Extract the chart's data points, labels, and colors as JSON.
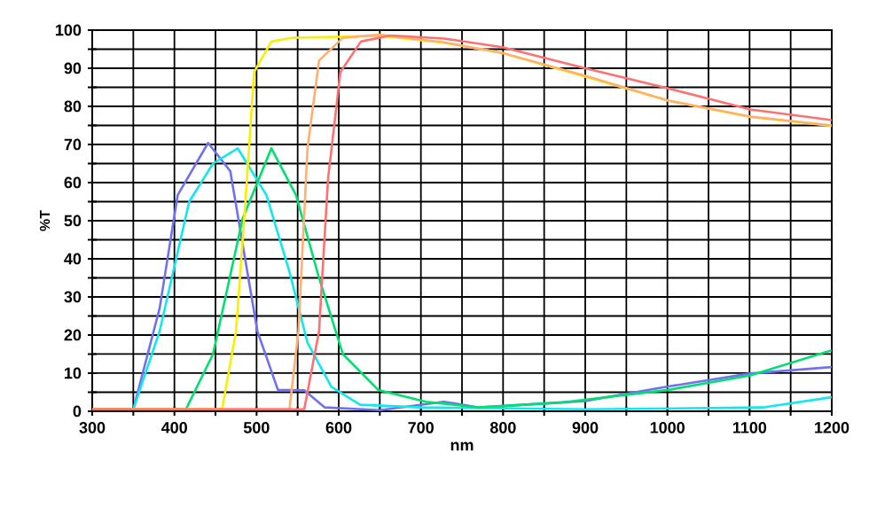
{
  "chart_data": {
    "type": "line",
    "xlabel": "nm",
    "ylabel": "%T",
    "xlim": [
      300,
      1200
    ],
    "ylim": [
      0,
      100
    ],
    "xticks": [
      300,
      {
        "value": 350,
        "label": null
      },
      400,
      {
        "value": 450,
        "label": null
      },
      500,
      {
        "value": 550,
        "label": null
      },
      600,
      {
        "value": 650,
        "label": null
      },
      700,
      {
        "value": 750,
        "label": null
      },
      800,
      {
        "value": 850,
        "label": null
      },
      900,
      {
        "value": 950,
        "label": null
      },
      1000,
      {
        "value": 1050,
        "label": null
      },
      1100,
      {
        "value": 1150,
        "label": null
      },
      1200
    ],
    "yticks": [
      0,
      {
        "value": 5,
        "label": null
      },
      10,
      {
        "value": 15,
        "label": null
      },
      20,
      {
        "value": 25,
        "label": null
      },
      30,
      {
        "value": 35,
        "label": null
      },
      40,
      {
        "value": 45,
        "label": null
      },
      50,
      {
        "value": 55,
        "label": null
      },
      60,
      {
        "value": 65,
        "label": null
      },
      70,
      {
        "value": 75,
        "label": null
      },
      80,
      {
        "value": 85,
        "label": null
      },
      90,
      {
        "value": 95,
        "label": null
      },
      100
    ],
    "grid": true,
    "marker": "none",
    "line_style": "solid",
    "series": [
      {
        "color": "#7070f0",
        "x": [
          300,
          350,
          382,
          404,
          441,
          468,
          501,
          526,
          558,
          583,
          650,
          728,
          771,
          900,
          1001,
          1101,
          1200
        ],
        "values": [
          0.5,
          0.5,
          27,
          56.7,
          70.4,
          63,
          21,
          5.6,
          5.5,
          1,
          0.3,
          2.5,
          1,
          2.7,
          6.5,
          9.9,
          11.6
        ]
      },
      {
        "color": "#10e8f0",
        "x": [
          300,
          350,
          382,
          418,
          447,
          477,
          512,
          540,
          562,
          591,
          626,
          700,
          900,
          1116,
          1200
        ],
        "values": [
          0.5,
          0.5,
          21,
          55,
          65,
          69,
          56.7,
          36.6,
          18,
          6.4,
          1.7,
          1,
          0.5,
          1,
          3.7
        ]
      },
      {
        "color": "#00e070",
        "x": [
          300,
          414,
          447,
          483,
          518,
          548,
          576,
          605,
          648,
          706,
          771,
          872,
          1001,
          1101,
          1200
        ],
        "values": [
          0.5,
          0.5,
          15,
          50.5,
          69,
          56.7,
          35,
          15,
          5.6,
          2.5,
          1,
          2.3,
          5.6,
          9.4,
          16
        ]
      },
      {
        "color": "#f8f000",
        "x": [
          300,
          458,
          475,
          486,
          497,
          518,
          544,
          650,
          728,
          799,
          900,
          1001,
          1101,
          1200
        ],
        "values": [
          0.5,
          0.5,
          21,
          53.6,
          89,
          97,
          98,
          98.5,
          96.7,
          94,
          87.8,
          81.5,
          77.2,
          74.9
        ]
      },
      {
        "color": "#ffb070",
        "x": [
          300,
          540,
          551,
          562,
          576,
          605,
          650,
          728,
          799,
          900,
          1001,
          1101,
          1200
        ],
        "values": [
          0.5,
          0.5,
          21,
          69,
          92,
          98,
          98.8,
          96.8,
          94,
          88,
          81.5,
          77.3,
          75
        ]
      },
      {
        "color": "#ff7070",
        "x": [
          300,
          558,
          576,
          587,
          602,
          627,
          663,
          728,
          799,
          900,
          1001,
          1101,
          1200
        ],
        "values": [
          0.5,
          0.5,
          21,
          61,
          89,
          97,
          98.6,
          97.8,
          95.5,
          90,
          84.7,
          79.2,
          76.4
        ]
      }
    ]
  }
}
